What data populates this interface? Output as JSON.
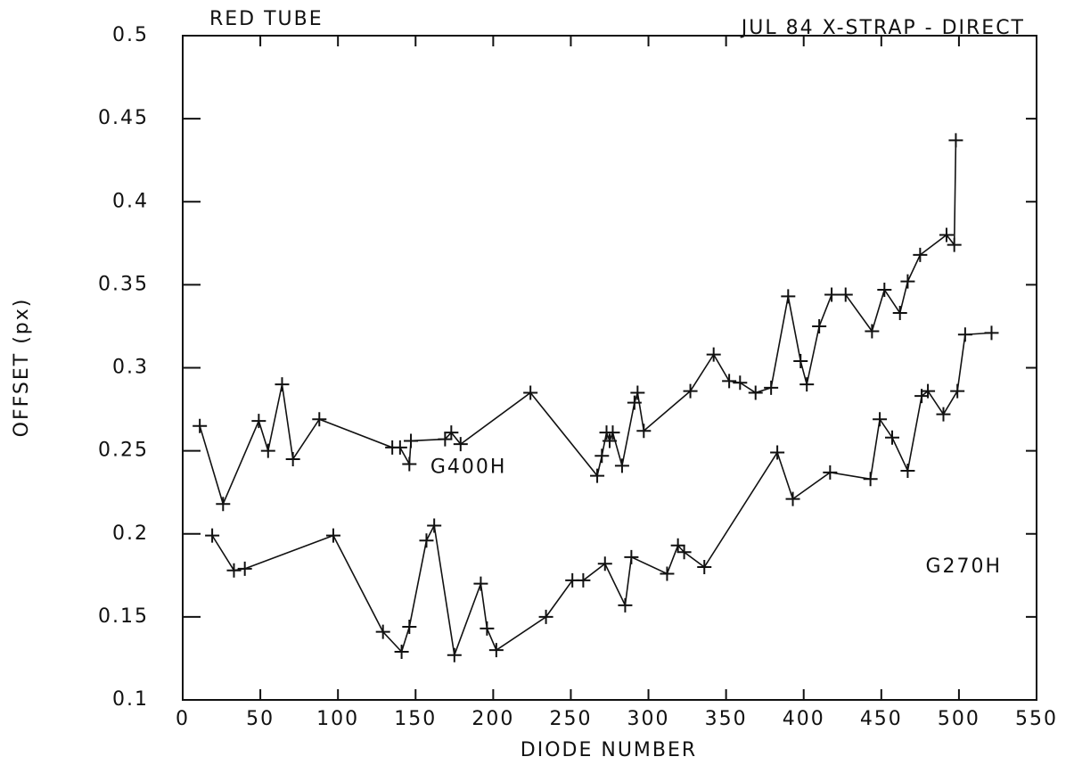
{
  "chart_data": {
    "type": "line",
    "title": "RED TUBE",
    "subtitle": "JUL 84   X-STRAP - DIRECT",
    "x_label": "DIODE NUMBER",
    "y_label": "OFFSET (px)",
    "xlim": [
      0,
      550
    ],
    "xticks": [
      0,
      50,
      100,
      150,
      200,
      250,
      300,
      350,
      400,
      450,
      500,
      550
    ],
    "ylim": [
      0.1,
      0.5
    ],
    "yticks": [
      0.1,
      0.15,
      0.2,
      0.25,
      0.3,
      0.35,
      0.4,
      0.45,
      0.5
    ],
    "grid": false,
    "series": [
      {
        "name": "G400H",
        "color": "#111111",
        "x": [
          11,
          26,
          49,
          55,
          64,
          71,
          88,
          135,
          140,
          146,
          147,
          169,
          173,
          179,
          224,
          267,
          270,
          273,
          275,
          277,
          283,
          291,
          293,
          297,
          327,
          342,
          352,
          359,
          369,
          379,
          390,
          398,
          402,
          410,
          418,
          427,
          444,
          452,
          462,
          467,
          475,
          492,
          497,
          498
        ],
        "values": [
          0.265,
          0.218,
          0.268,
          0.25,
          0.29,
          0.245,
          0.269,
          0.252,
          0.252,
          0.242,
          0.256,
          0.257,
          0.261,
          0.254,
          0.285,
          0.235,
          0.247,
          0.261,
          0.256,
          0.261,
          0.241,
          0.279,
          0.285,
          0.262,
          0.286,
          0.308,
          0.292,
          0.291,
          0.285,
          0.288,
          0.343,
          0.304,
          0.29,
          0.325,
          0.344,
          0.344,
          0.322,
          0.347,
          0.333,
          0.352,
          0.368,
          0.38,
          0.374,
          0.437
        ]
      },
      {
        "name": "G270H",
        "color": "#111111",
        "x": [
          19,
          33,
          40,
          97,
          129,
          141,
          146,
          157,
          162,
          175,
          192,
          196,
          202,
          234,
          251,
          258,
          272,
          285,
          289,
          312,
          319,
          323,
          336,
          383,
          393,
          417,
          443,
          449,
          457,
          467,
          476,
          480,
          490,
          499,
          504,
          521
        ],
        "values": [
          0.199,
          0.178,
          0.179,
          0.199,
          0.141,
          0.129,
          0.144,
          0.196,
          0.205,
          0.127,
          0.17,
          0.143,
          0.13,
          0.15,
          0.172,
          0.172,
          0.182,
          0.157,
          0.186,
          0.176,
          0.193,
          0.189,
          0.18,
          0.249,
          0.221,
          0.237,
          0.233,
          0.269,
          0.258,
          0.238,
          0.283,
          0.286,
          0.272,
          0.286,
          0.32,
          0.321
        ]
      }
    ]
  }
}
